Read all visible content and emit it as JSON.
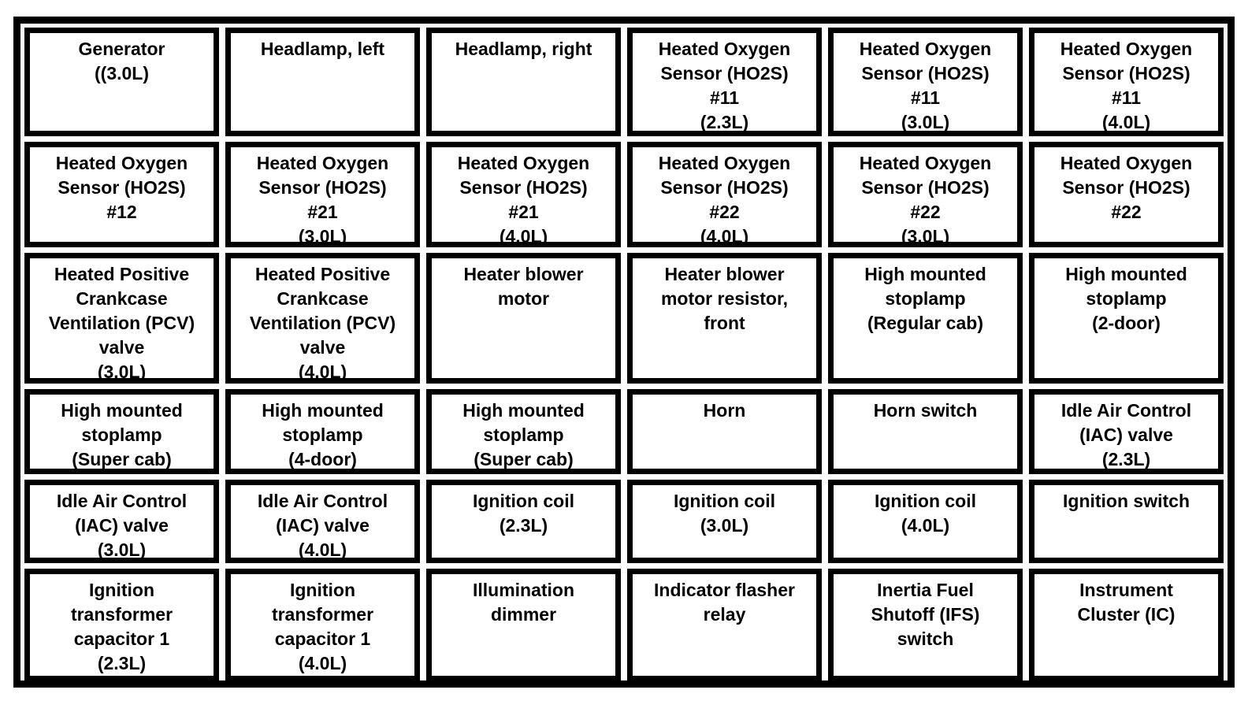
{
  "colors": {
    "border": "#000000",
    "background": "#ffffff",
    "text": "#000000"
  },
  "table": {
    "rows": [
      {
        "cells": [
          "Generator\n((3.0L)",
          "Headlamp, left",
          "Headlamp, right",
          "Heated Oxygen\nSensor (HO2S)\n#11\n(2.3L)",
          "Heated Oxygen\nSensor (HO2S)\n#11\n(3.0L)",
          "Heated Oxygen\nSensor (HO2S)\n#11\n(4.0L)"
        ]
      },
      {
        "cells": [
          "Heated Oxygen\nSensor (HO2S)\n#12",
          "Heated Oxygen\nSensor (HO2S)\n#21\n(3.0L)",
          "Heated Oxygen\nSensor (HO2S)\n#21\n(4.0L)",
          "Heated Oxygen\nSensor (HO2S)\n#22\n(4.0L)",
          "Heated Oxygen\nSensor (HO2S)\n#22\n(3.0L)",
          "Heated Oxygen\nSensor (HO2S)\n#22"
        ]
      },
      {
        "cells": [
          "Heated Positive\nCrankcase\nVentilation (PCV)\nvalve\n(3.0L)",
          "Heated Positive\nCrankcase\nVentilation (PCV)\nvalve\n(4.0L)",
          "Heater blower\nmotor",
          "Heater blower\nmotor resistor,\nfront",
          "High mounted\nstoplamp\n(Regular cab)",
          "High mounted\nstoplamp\n(2-door)"
        ]
      },
      {
        "cells": [
          "High mounted\nstoplamp\n(Super cab)",
          "High mounted\nstoplamp\n(4-door)",
          "High mounted\nstoplamp\n(Super cab)",
          "Horn",
          "Horn switch",
          "Idle Air Control\n(IAC) valve\n(2.3L)"
        ]
      },
      {
        "cells": [
          "Idle Air Control\n(IAC) valve\n(3.0L)",
          "Idle Air Control\n(IAC) valve\n(4.0L)",
          "Ignition coil\n(2.3L)",
          "Ignition coil\n(3.0L)",
          "Ignition coil\n(4.0L)",
          "Ignition switch"
        ]
      },
      {
        "cells": [
          "Ignition\ntransformer\ncapacitor 1\n(2.3L)",
          "Ignition\ntransformer\ncapacitor 1\n(4.0L)",
          "Illumination\ndimmer",
          "Indicator flasher\nrelay",
          "Inertia Fuel\nShutoff (IFS)\nswitch",
          "Instrument\nCluster (IC)"
        ]
      }
    ]
  }
}
